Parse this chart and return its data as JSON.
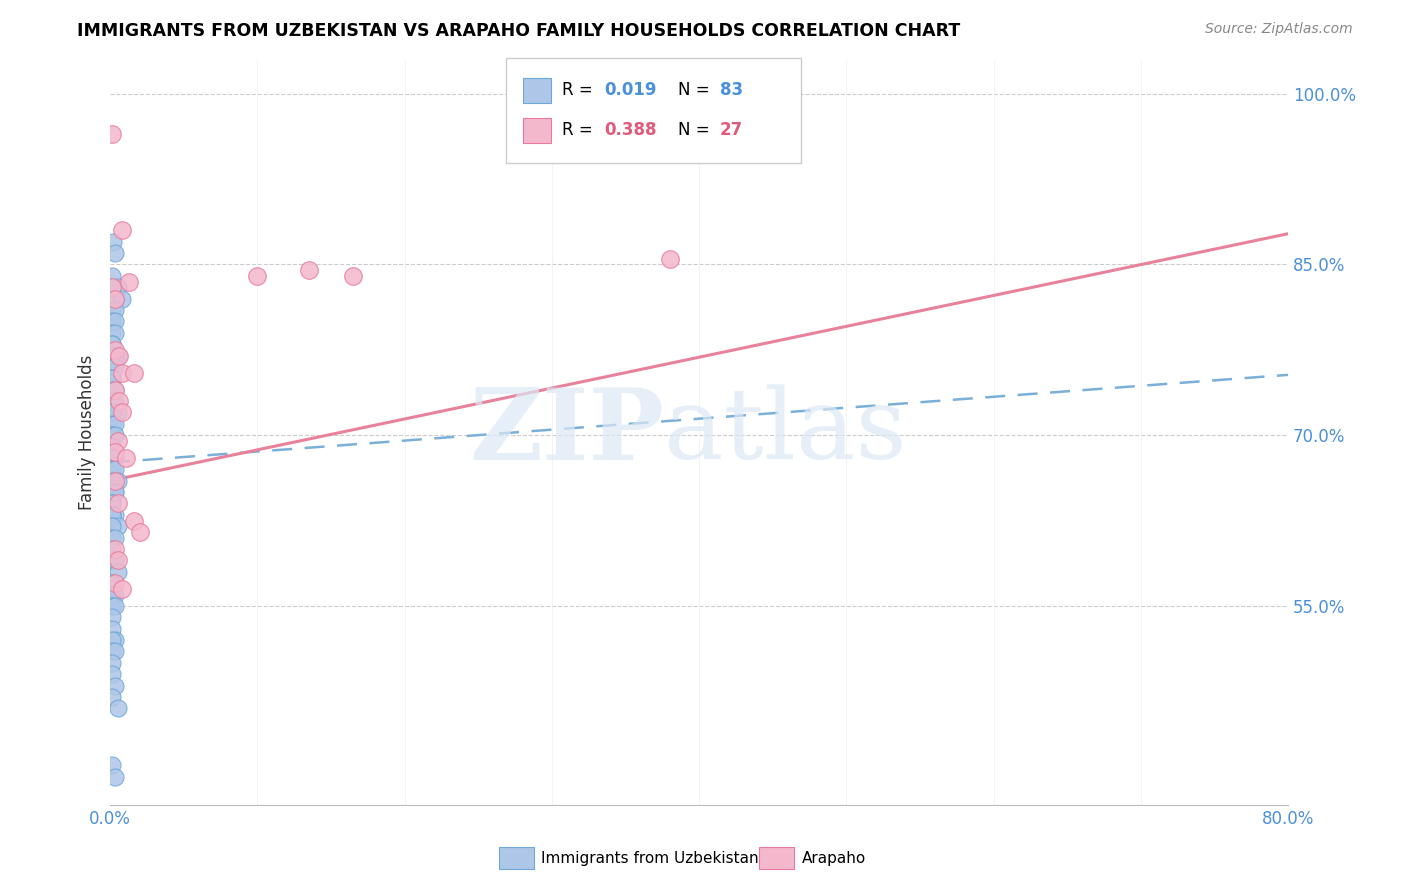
{
  "title": "IMMIGRANTS FROM UZBEKISTAN VS ARAPAHO FAMILY HOUSEHOLDS CORRELATION CHART",
  "source": "Source: ZipAtlas.com",
  "ylabel": "Family Households",
  "yticks": [
    "100.0%",
    "85.0%",
    "70.0%",
    "55.0%"
  ],
  "ytick_vals": [
    1.0,
    0.85,
    0.7,
    0.55
  ],
  "legend_label_blue": "Immigrants from Uzbekistan",
  "legend_label_pink": "Arapaho",
  "blue_color": "#aec6e8",
  "pink_color": "#f4b8cc",
  "blue_edge_color": "#6fa8d8",
  "pink_edge_color": "#e87a9a",
  "blue_line_color": "#7ab0d8",
  "pink_line_color": "#e8829a",
  "blue_r_color": "#4a90d9",
  "pink_r_color": "#e05a7a",
  "blue_scatter_x": [
    0.002,
    0.003,
    0.001,
    0.005,
    0.001,
    0.004,
    0.008,
    0.001,
    0.003,
    0.001,
    0.003,
    0.001,
    0.003,
    0.001,
    0.001,
    0.005,
    0.003,
    0.001,
    0.001,
    0.003,
    0.001,
    0.001,
    0.001,
    0.003,
    0.001,
    0.003,
    0.005,
    0.001,
    0.001,
    0.003,
    0.001,
    0.001,
    0.001,
    0.003,
    0.001,
    0.001,
    0.001,
    0.001,
    0.003,
    0.001,
    0.001,
    0.003,
    0.001,
    0.005,
    0.003,
    0.001,
    0.003,
    0.001,
    0.001,
    0.001,
    0.001,
    0.003,
    0.001,
    0.001,
    0.001,
    0.005,
    0.001,
    0.001,
    0.003,
    0.001,
    0.001,
    0.003,
    0.005,
    0.001,
    0.001,
    0.001,
    0.003,
    0.001,
    0.001,
    0.001,
    0.003,
    0.001,
    0.001,
    0.003,
    0.001,
    0.001,
    0.003,
    0.001,
    0.001,
    0.003,
    0.001,
    0.005,
    0.001,
    0.003
  ],
  "blue_scatter_y": [
    0.87,
    0.86,
    0.84,
    0.83,
    0.83,
    0.82,
    0.82,
    0.81,
    0.81,
    0.8,
    0.8,
    0.79,
    0.79,
    0.78,
    0.78,
    0.77,
    0.77,
    0.77,
    0.76,
    0.76,
    0.75,
    0.75,
    0.74,
    0.74,
    0.73,
    0.73,
    0.72,
    0.72,
    0.71,
    0.71,
    0.7,
    0.7,
    0.7,
    0.7,
    0.69,
    0.69,
    0.68,
    0.68,
    0.68,
    0.67,
    0.67,
    0.67,
    0.66,
    0.66,
    0.65,
    0.65,
    0.65,
    0.64,
    0.64,
    0.64,
    0.63,
    0.63,
    0.63,
    0.63,
    0.62,
    0.62,
    0.62,
    0.61,
    0.61,
    0.6,
    0.59,
    0.59,
    0.58,
    0.57,
    0.57,
    0.56,
    0.56,
    0.56,
    0.55,
    0.55,
    0.55,
    0.54,
    0.53,
    0.52,
    0.52,
    0.51,
    0.51,
    0.5,
    0.49,
    0.48,
    0.47,
    0.46,
    0.41,
    0.4
  ],
  "pink_scatter_x": [
    0.001,
    0.008,
    0.013,
    0.001,
    0.003,
    0.003,
    0.006,
    0.008,
    0.016,
    0.003,
    0.006,
    0.008,
    0.005,
    0.003,
    0.011,
    0.003,
    0.005,
    0.016,
    0.02,
    0.003,
    0.005,
    0.003,
    0.008,
    0.1,
    0.135,
    0.165,
    0.38
  ],
  "pink_scatter_y": [
    0.965,
    0.88,
    0.835,
    0.83,
    0.82,
    0.775,
    0.77,
    0.755,
    0.755,
    0.74,
    0.73,
    0.72,
    0.695,
    0.685,
    0.68,
    0.66,
    0.64,
    0.625,
    0.615,
    0.6,
    0.59,
    0.57,
    0.565,
    0.84,
    0.845,
    0.84,
    0.855
  ],
  "xmin": 0.0,
  "xmax": 0.8,
  "ymin": 0.375,
  "ymax": 1.03,
  "blue_trend_x": [
    0.0,
    0.8
  ],
  "blue_trend_y": [
    0.676,
    0.753
  ],
  "pink_trend_x": [
    0.0,
    0.8
  ],
  "pink_trend_y": [
    0.66,
    0.877
  ]
}
